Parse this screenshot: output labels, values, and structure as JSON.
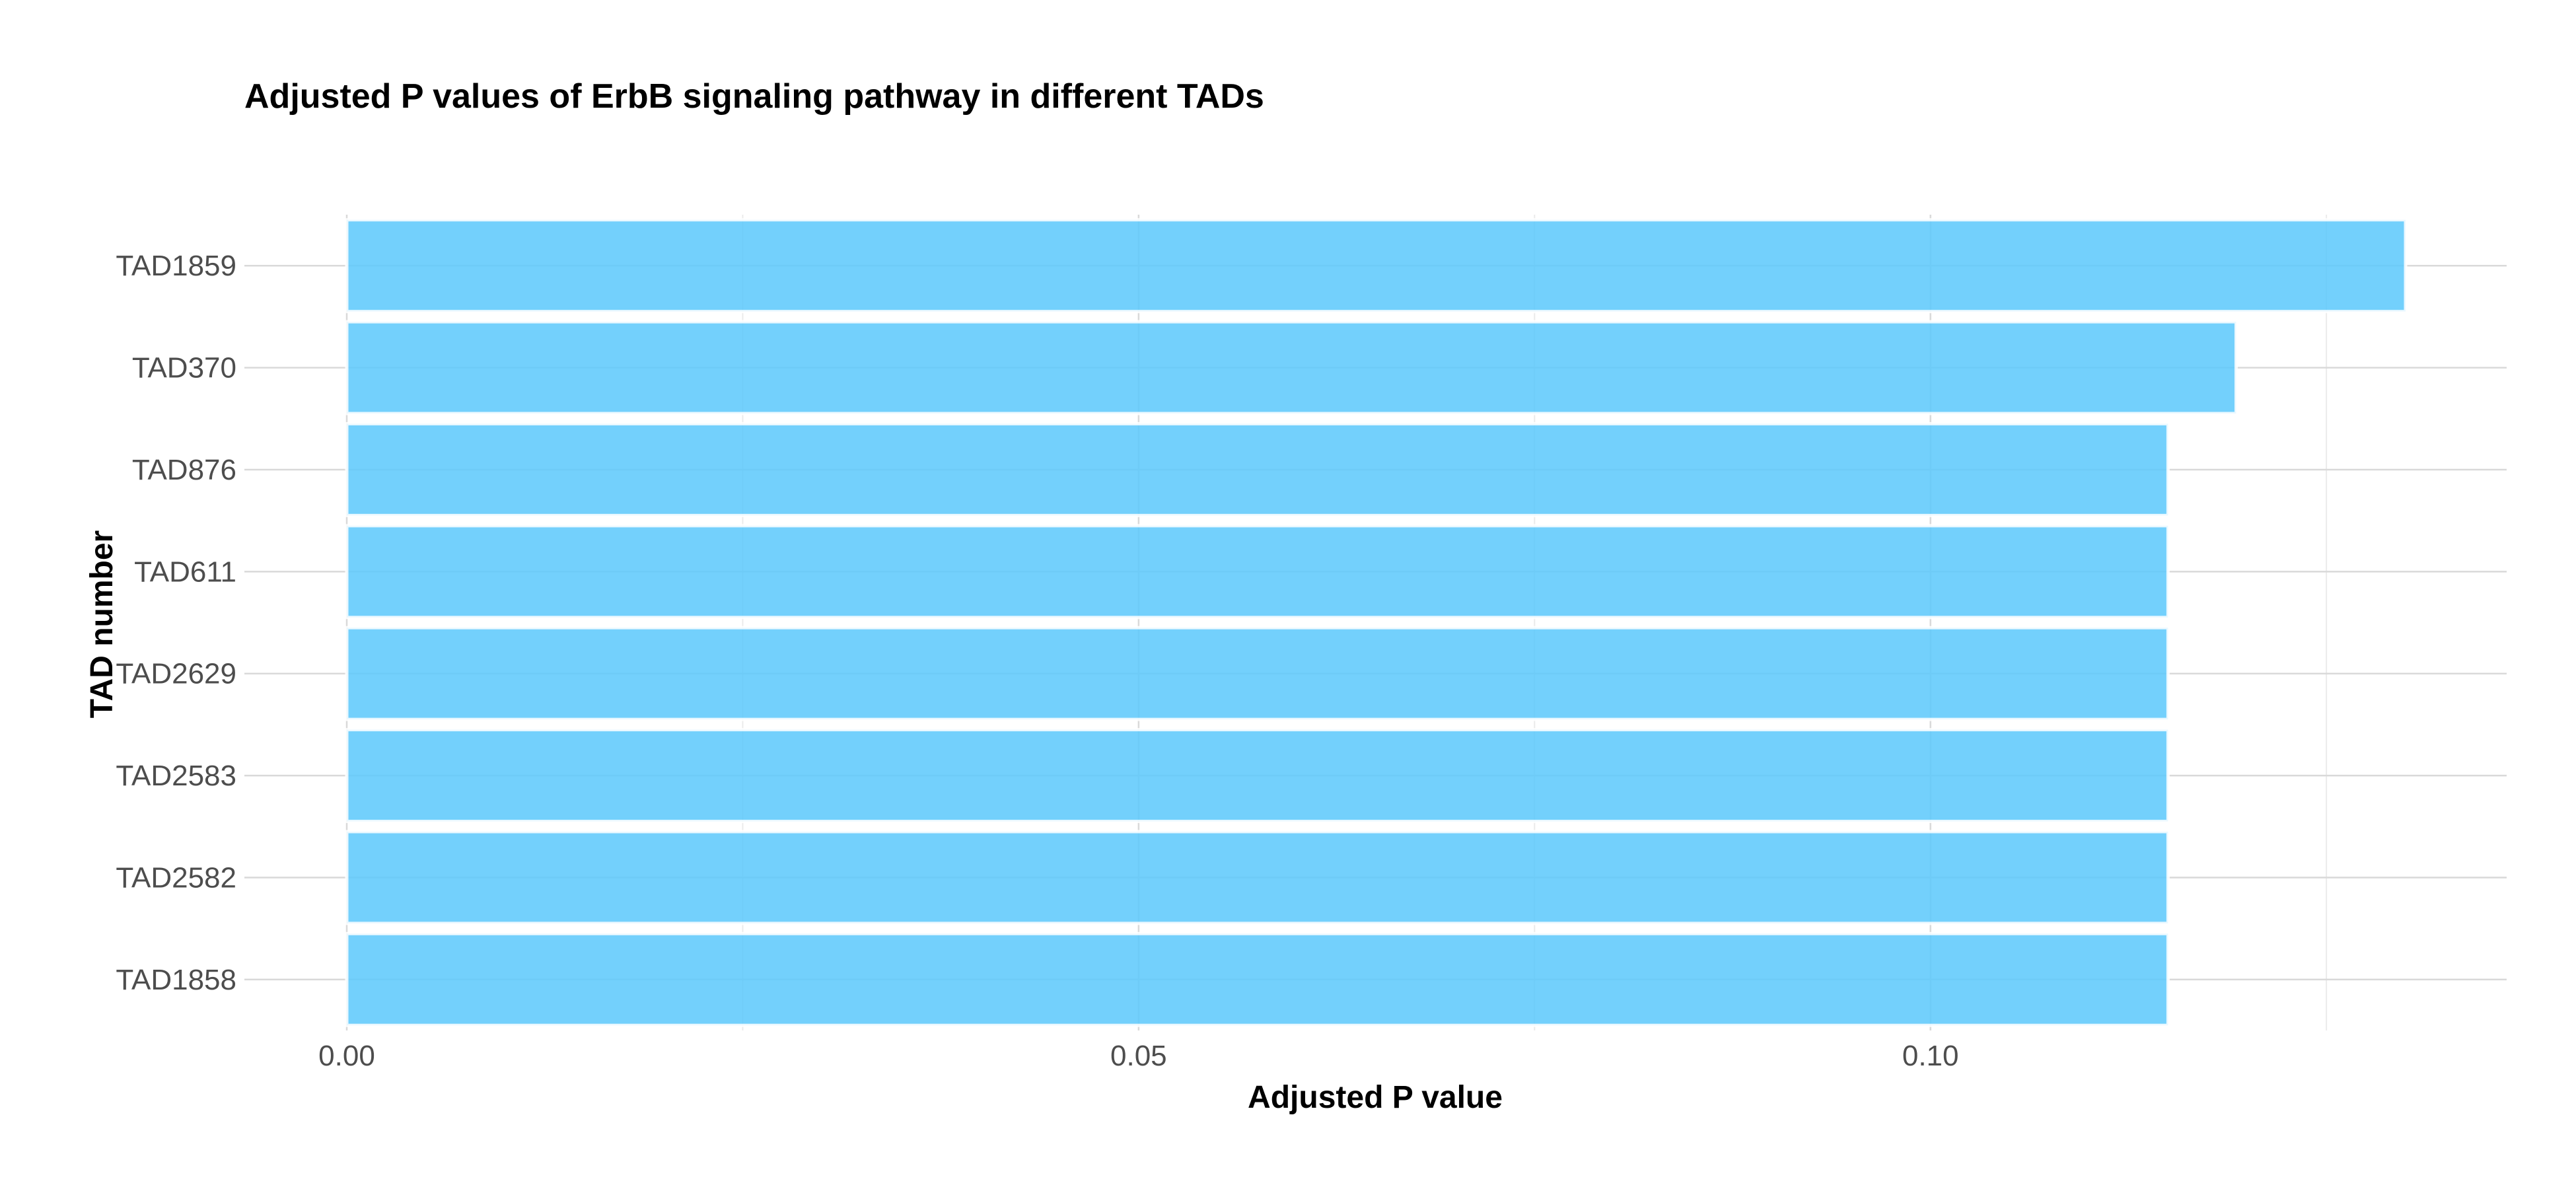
{
  "chart_data": {
    "type": "bar",
    "orientation": "horizontal",
    "title": "Adjusted P values of ErbB signaling pathway in different TADs",
    "xlabel": "Adjusted P value",
    "ylabel": "TAD number",
    "categories": [
      "TAD1859",
      "TAD370",
      "TAD876",
      "TAD611",
      "TAD2629",
      "TAD2583",
      "TAD2582",
      "TAD1858"
    ],
    "values": [
      0.13,
      0.1193,
      0.115,
      0.115,
      0.115,
      0.115,
      0.115,
      0.115
    ],
    "xlim": [
      0,
      0.1365
    ],
    "xticks": [
      0.0,
      0.05,
      0.1
    ],
    "xtick_labels": [
      "0.00",
      "0.05",
      "0.10"
    ],
    "grid": true,
    "legend": false,
    "bar_color": "#5BC8FC"
  }
}
